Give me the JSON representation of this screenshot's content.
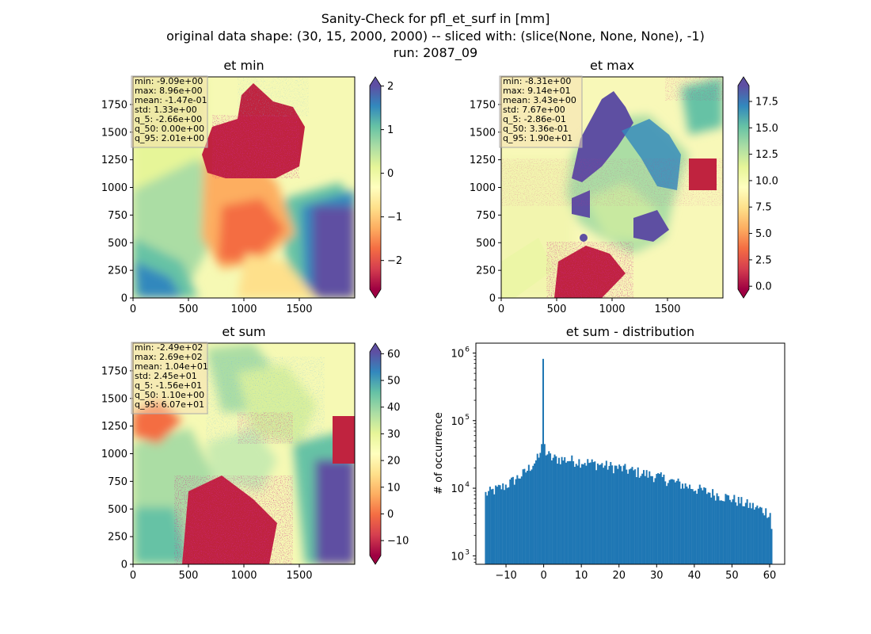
{
  "suptitle": {
    "line1": "Sanity-Check for pfl_et_surf in [mm]",
    "line2": "original data shape: (30, 15, 2000, 2000) -- sliced with: (slice(None, None, None), -1)",
    "line3": "run: 2087_09"
  },
  "chart_data": [
    {
      "type": "heatmap",
      "title": "et min",
      "colormap": "Spectral",
      "xlim": [
        0,
        2000
      ],
      "ylim": [
        0,
        2000
      ],
      "xticks": [
        0,
        500,
        1000,
        1500
      ],
      "yticks": [
        0,
        250,
        500,
        750,
        1000,
        1250,
        1500,
        1750
      ],
      "colorbar": {
        "min": -2.66,
        "max": 2.01,
        "ticks": [
          -2,
          -1,
          0,
          1,
          2
        ],
        "tick_labels": [
          "−2",
          "−1",
          "0",
          "1",
          "2"
        ],
        "extend": "both"
      },
      "stats": {
        "min": "min: -9.09e+00",
        "max": "max: 8.96e+00",
        "mean": "mean: -1.47e-01",
        "std": "std: 1.33e+00",
        "q_5": "q_5: -2.66e+00",
        "q_50": "q_50: 0.00e+00",
        "q_95": "q_95: 2.01e+00"
      }
    },
    {
      "type": "heatmap",
      "title": "et max",
      "colormap": "Spectral",
      "xlim": [
        0,
        2000
      ],
      "ylim": [
        0,
        2000
      ],
      "xticks": [
        0,
        500,
        1000,
        1500
      ],
      "yticks": [
        0,
        250,
        500,
        750,
        1000,
        1250,
        1500,
        1750
      ],
      "colorbar": {
        "min": -0.286,
        "max": 19.0,
        "ticks": [
          0.0,
          2.5,
          5.0,
          7.5,
          10.0,
          12.5,
          15.0,
          17.5
        ],
        "tick_labels": [
          "0.0",
          "2.5",
          "5.0",
          "7.5",
          "10.0",
          "12.5",
          "15.0",
          "17.5"
        ],
        "extend": "both"
      },
      "stats": {
        "min": "min: -8.31e+00",
        "max": "max: 9.14e+01",
        "mean": "mean: 3.43e+00",
        "std": "std: 7.67e+00",
        "q_5": "q_5: -2.86e-01",
        "q_50": "q_50: 3.36e-01",
        "q_95": "q_95: 1.90e+01"
      }
    },
    {
      "type": "heatmap",
      "title": "et sum",
      "colormap": "Spectral",
      "xlim": [
        0,
        2000
      ],
      "ylim": [
        0,
        2000
      ],
      "xticks": [
        0,
        500,
        1000,
        1500
      ],
      "yticks": [
        0,
        250,
        500,
        750,
        1000,
        1250,
        1500,
        1750
      ],
      "colorbar": {
        "min": -15.6,
        "max": 60.7,
        "ticks": [
          -10,
          0,
          10,
          20,
          30,
          40,
          50,
          60
        ],
        "tick_labels": [
          "−10",
          "0",
          "10",
          "20",
          "30",
          "40",
          "50",
          "60"
        ],
        "extend": "both"
      },
      "stats": {
        "min": "min: -2.49e+02",
        "max": "max: 2.69e+02",
        "mean": "mean: 1.04e+01",
        "std": "std: 2.45e+01",
        "q_5": "q_5: -1.56e+01",
        "q_50": "q_50: 1.10e+00",
        "q_95": "q_95: 6.07e+01"
      }
    },
    {
      "type": "bar",
      "title": "et sum - distribution",
      "ylabel": "# of occurrence",
      "xlabel": "",
      "yscale": "log",
      "xlim": [
        -18,
        64
      ],
      "ylim": [
        750,
        1400000
      ],
      "xticks": [
        -10,
        0,
        10,
        20,
        30,
        40,
        50,
        60
      ],
      "xtick_labels": [
        "−10",
        "0",
        "10",
        "20",
        "30",
        "40",
        "50",
        "60"
      ],
      "yticks": [
        1000,
        10000,
        100000,
        1000000
      ],
      "ytick_labels": [
        [
          "10",
          "3"
        ],
        [
          "10",
          "4"
        ],
        [
          "10",
          "5"
        ],
        [
          "10",
          "6"
        ]
      ],
      "color": "#1f77b4",
      "bins": {
        "start": -15.6,
        "end": 60.7,
        "count": 200
      },
      "shape": {
        "x": [
          -15.6,
          -10,
          -5,
          -2,
          -0.3,
          0,
          0.3,
          2,
          10,
          20,
          30,
          40,
          50,
          60.7
        ],
        "y": [
          8200,
          11000,
          17000,
          26000,
          33000,
          820000,
          36000,
          28000,
          25000,
          20000,
          15000,
          10000,
          7000,
          4200
        ]
      }
    }
  ]
}
